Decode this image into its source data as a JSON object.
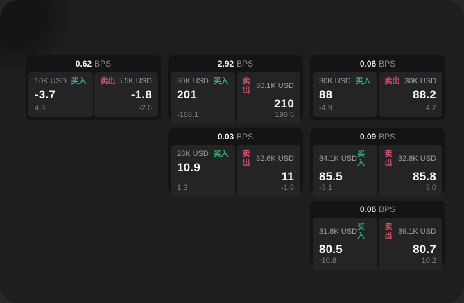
{
  "labels": {
    "buy": "买入",
    "sell": "卖出",
    "bps": "BPS"
  },
  "colors": {
    "buy_green": "#31b068",
    "sell_red": "#d25068",
    "card_bg": "#141414",
    "panel_bg": "#242427",
    "window_bg": "#1e1e1e"
  },
  "cards": [
    {
      "col": 1,
      "row": 1,
      "bps": "0.62",
      "buy": {
        "amount": "10K USD",
        "price": "-3.7",
        "delta": "4.3"
      },
      "sell": {
        "amount": "5.5K USD",
        "price": "-1.8",
        "delta": "-2.6"
      }
    },
    {
      "col": 2,
      "row": 1,
      "bps": "2.92",
      "buy": {
        "amount": "30K USD",
        "price": "201",
        "delta": "-188.1"
      },
      "sell": {
        "amount": "30.1K USD",
        "price": "210",
        "delta": "196.5"
      }
    },
    {
      "col": 3,
      "row": 1,
      "bps": "0.06",
      "buy": {
        "amount": "30K USD",
        "price": "88",
        "delta": "-4.9"
      },
      "sell": {
        "amount": "30K USD",
        "price": "88.2",
        "delta": "4.7"
      }
    },
    {
      "col": 2,
      "row": 2,
      "bps": "0.03",
      "buy": {
        "amount": "28K USD",
        "price": "10.9",
        "delta": "1.3"
      },
      "sell": {
        "amount": "32.6K USD",
        "price": "11",
        "delta": "-1.8"
      }
    },
    {
      "col": 3,
      "row": 2,
      "bps": "0.09",
      "buy": {
        "amount": "34.1K USD",
        "price": "85.5",
        "delta": "-3.1"
      },
      "sell": {
        "amount": "32.8K USD",
        "price": "85.8",
        "delta": "3.0"
      }
    },
    {
      "col": 3,
      "row": 3,
      "bps": "0.06",
      "buy": {
        "amount": "31.8K USD",
        "price": "80.5",
        "delta": "-10.8"
      },
      "sell": {
        "amount": "39.1K USD",
        "price": "80.7",
        "delta": "10.2"
      }
    }
  ]
}
